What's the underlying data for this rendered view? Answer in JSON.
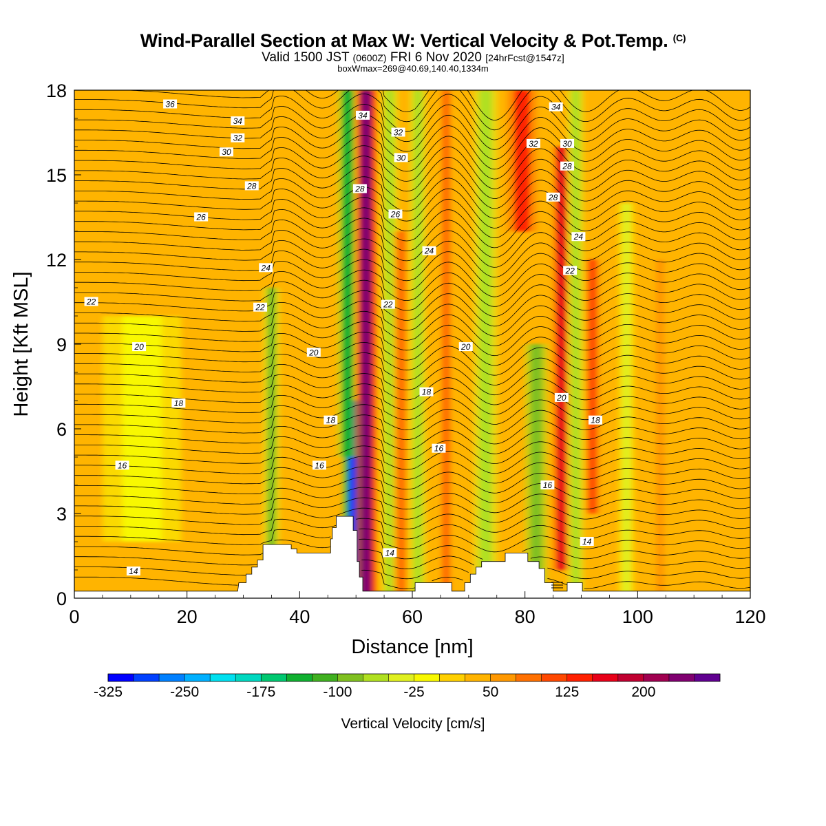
{
  "title": {
    "main": "Wind-Parallel Section at Max W: Vertical Velocity & Pot.Temp.",
    "copyright": "(C)",
    "valid_prefix": "Valid 1500 JST",
    "valid_utc": "(0600Z)",
    "valid_date": "FRI 6 Nov 2020",
    "forecast": "[24hrFcst@1547z]",
    "box_info": "boxWmax=269@40.69,140.40,1334m"
  },
  "chart_data": {
    "type": "contour-section",
    "xlabel": "Distance [nm]",
    "ylabel": "Height [Kft MSL]",
    "xlim": [
      0,
      120
    ],
    "ylim": [
      0,
      18
    ],
    "xticks": [
      0,
      20,
      40,
      60,
      80,
      100,
      120
    ],
    "yticks": [
      0,
      3,
      6,
      9,
      12,
      15,
      18
    ],
    "colorbar": {
      "label": "Vertical Velocity [cm/s]",
      "range": [
        -325,
        250
      ],
      "step": 25,
      "tick_values": [
        -325,
        -250,
        -175,
        -100,
        -25,
        50,
        125,
        200
      ],
      "colors": [
        "#0000ff",
        "#0040ff",
        "#0080ff",
        "#00b0ff",
        "#00e0f0",
        "#00d8c0",
        "#00c870",
        "#10b030",
        "#40b020",
        "#80c020",
        "#b0e020",
        "#e0f020",
        "#f8f800",
        "#ffd000",
        "#ffb400",
        "#ff9800",
        "#ff7000",
        "#ff4800",
        "#ff2000",
        "#e80018",
        "#c00030",
        "#a00050",
        "#800070",
        "#600090"
      ]
    },
    "velocity_bands": [
      {
        "x": 49.5,
        "w": 1.8,
        "v": -290,
        "y0": 0,
        "y1": 7
      },
      {
        "x": 48.5,
        "w": 1.8,
        "v": -130,
        "y0": 5,
        "y1": 18
      },
      {
        "x": 51.8,
        "w": 1.9,
        "v": 230,
        "y0": 0,
        "y1": 18
      },
      {
        "x": 35.0,
        "w": 1.5,
        "v": -90,
        "y0": 0,
        "y1": 11
      },
      {
        "x": 56.0,
        "w": 1.5,
        "v": -70,
        "y0": 0,
        "y1": 18
      },
      {
        "x": 58.0,
        "w": 1.6,
        "v": 90,
        "y0": 0,
        "y1": 13
      },
      {
        "x": 61.0,
        "w": 1.5,
        "v": -60,
        "y0": 0,
        "y1": 18
      },
      {
        "x": 66.0,
        "w": 1.6,
        "v": 80,
        "y0": 0,
        "y1": 18
      },
      {
        "x": 73.0,
        "w": 2.2,
        "v": -60,
        "y0": 0,
        "y1": 18
      },
      {
        "x": 79.5,
        "w": 2.6,
        "v": 140,
        "y0": 13,
        "y1": 18
      },
      {
        "x": 82.0,
        "w": 2.0,
        "v": -100,
        "y0": 0,
        "y1": 9
      },
      {
        "x": 86.5,
        "w": 1.6,
        "v": 160,
        "y0": 1,
        "y1": 16
      },
      {
        "x": 89.0,
        "w": 1.5,
        "v": -60,
        "y0": 0,
        "y1": 18
      },
      {
        "x": 92.0,
        "w": 1.5,
        "v": 110,
        "y0": 3,
        "y1": 12
      },
      {
        "x": 98.0,
        "w": 1.4,
        "v": -45,
        "y0": 0,
        "y1": 14
      },
      {
        "x": 104.0,
        "w": 1.5,
        "v": 60,
        "y0": 0,
        "y1": 12
      },
      {
        "x": 12.0,
        "w": 7.0,
        "v": -25,
        "y0": 2,
        "y1": 10
      }
    ],
    "terrain": [
      [
        0,
        0.25
      ],
      [
        29,
        0.25
      ],
      [
        29.2,
        0.55
      ],
      [
        30.5,
        0.55
      ],
      [
        30.5,
        0.85
      ],
      [
        31.5,
        0.85
      ],
      [
        31.5,
        1.1
      ],
      [
        32.5,
        1.1
      ],
      [
        32.5,
        1.35
      ],
      [
        33.5,
        1.35
      ],
      [
        33.5,
        1.9
      ],
      [
        38.5,
        1.9
      ],
      [
        38.5,
        1.75
      ],
      [
        39.5,
        1.75
      ],
      [
        39.5,
        1.6
      ],
      [
        45.5,
        1.6
      ],
      [
        45.5,
        2.1
      ],
      [
        45.8,
        2.1
      ],
      [
        45.8,
        2.5
      ],
      [
        46.5,
        2.5
      ],
      [
        46.5,
        2.9
      ],
      [
        49.5,
        2.9
      ],
      [
        49.5,
        2.4
      ],
      [
        50.2,
        2.4
      ],
      [
        50.2,
        1.3
      ],
      [
        50.6,
        1.3
      ],
      [
        50.6,
        0.75
      ],
      [
        51.2,
        0.75
      ],
      [
        51.2,
        0.25
      ],
      [
        60.5,
        0.25
      ],
      [
        60.5,
        0.55
      ],
      [
        67,
        0.55
      ],
      [
        67,
        0.25
      ],
      [
        69.3,
        0.25
      ],
      [
        69.3,
        0.55
      ],
      [
        70.3,
        0.55
      ],
      [
        70.3,
        0.85
      ],
      [
        71.3,
        0.85
      ],
      [
        71.3,
        1.1
      ],
      [
        72.3,
        1.1
      ],
      [
        72.3,
        1.3
      ],
      [
        76.5,
        1.3
      ],
      [
        76.5,
        1.6
      ],
      [
        80.5,
        1.6
      ],
      [
        80.5,
        1.3
      ],
      [
        82.5,
        1.3
      ],
      [
        82.5,
        1.05
      ],
      [
        83.5,
        1.05
      ],
      [
        83.5,
        0.55
      ],
      [
        85,
        0.55
      ],
      [
        85,
        0.25
      ],
      [
        87.5,
        0.25
      ],
      [
        87.5,
        0.55
      ],
      [
        90.2,
        0.55
      ],
      [
        90.2,
        0.25
      ],
      [
        120,
        0.25
      ]
    ],
    "theta_contours": {
      "levels_first": 13,
      "levels_last": 37,
      "labels": [
        {
          "x": 17.0,
          "y": 17.5,
          "v": 36
        },
        {
          "x": 29.0,
          "y": 16.9,
          "v": 34
        },
        {
          "x": 29.0,
          "y": 16.3,
          "v": 32
        },
        {
          "x": 27.0,
          "y": 15.8,
          "v": 30
        },
        {
          "x": 31.5,
          "y": 14.6,
          "v": 28
        },
        {
          "x": 22.5,
          "y": 13.5,
          "v": 26
        },
        {
          "x": 34.0,
          "y": 11.7,
          "v": 24
        },
        {
          "x": 3.0,
          "y": 10.5,
          "v": 22
        },
        {
          "x": 33.0,
          "y": 10.3,
          "v": 22
        },
        {
          "x": 11.5,
          "y": 8.9,
          "v": 20
        },
        {
          "x": 42.5,
          "y": 8.7,
          "v": 20
        },
        {
          "x": 18.5,
          "y": 6.9,
          "v": 18
        },
        {
          "x": 45.5,
          "y": 6.3,
          "v": 18
        },
        {
          "x": 8.5,
          "y": 4.7,
          "v": 16
        },
        {
          "x": 43.5,
          "y": 4.7,
          "v": 16
        },
        {
          "x": 51.2,
          "y": 17.1,
          "v": 34
        },
        {
          "x": 57.5,
          "y": 16.5,
          "v": 32
        },
        {
          "x": 58.0,
          "y": 15.6,
          "v": 30
        },
        {
          "x": 50.7,
          "y": 14.5,
          "v": 28
        },
        {
          "x": 57.0,
          "y": 13.6,
          "v": 26
        },
        {
          "x": 55.7,
          "y": 10.4,
          "v": 22
        },
        {
          "x": 63.0,
          "y": 12.3,
          "v": 24
        },
        {
          "x": 69.5,
          "y": 8.9,
          "v": 20
        },
        {
          "x": 62.5,
          "y": 7.3,
          "v": 18
        },
        {
          "x": 64.7,
          "y": 5.3,
          "v": 16
        },
        {
          "x": 56.0,
          "y": 1.6,
          "v": 14
        },
        {
          "x": 85.5,
          "y": 17.4,
          "v": 34
        },
        {
          "x": 81.5,
          "y": 16.1,
          "v": 32
        },
        {
          "x": 87.5,
          "y": 16.1,
          "v": 30
        },
        {
          "x": 87.5,
          "y": 15.3,
          "v": 28
        },
        {
          "x": 85.0,
          "y": 14.2,
          "v": 28
        },
        {
          "x": 89.5,
          "y": 12.8,
          "v": 24
        },
        {
          "x": 88.0,
          "y": 11.6,
          "v": 22
        },
        {
          "x": 86.5,
          "y": 7.1,
          "v": 20
        },
        {
          "x": 92.5,
          "y": 6.3,
          "v": 18
        },
        {
          "x": 84.0,
          "y": 4.0,
          "v": 16
        },
        {
          "x": 91.0,
          "y": 2.0,
          "v": 14
        },
        {
          "x": 10.5,
          "y": 0.95,
          "v": 14
        }
      ]
    }
  }
}
